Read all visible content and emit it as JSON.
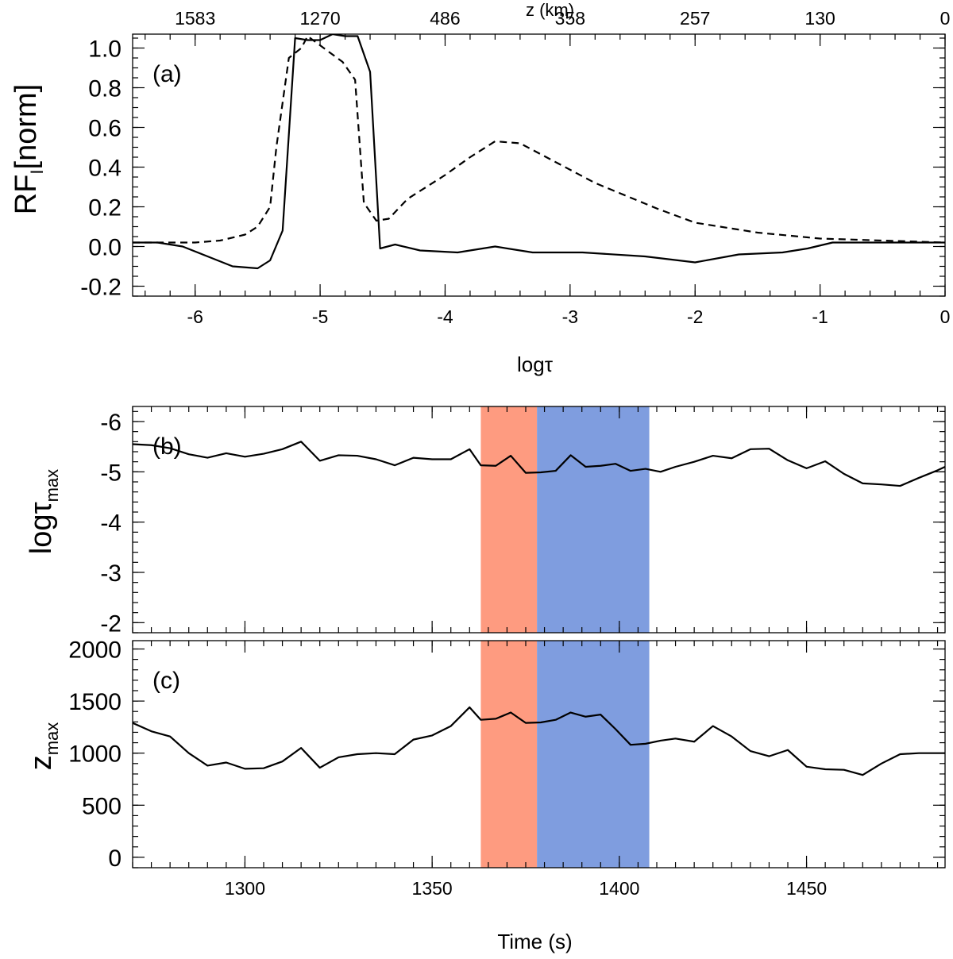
{
  "chart_data": [
    {
      "id": "a",
      "type": "line",
      "panel_label": "(a)",
      "xlabel": "logτ",
      "ylabel": "RF_I[norm]",
      "ylabel_main": "RF",
      "ylabel_sub": "I",
      "ylabel_rest": "[norm]",
      "top_axis_label": "z (km)",
      "xlim": [
        -6.5,
        0
      ],
      "ylim": [
        -0.25,
        1.07
      ],
      "x_ticks": [
        -6,
        -5,
        -4,
        -3,
        -2,
        -1,
        0
      ],
      "x_tick_labels": [
        "-6",
        "-5",
        "-4",
        "-3",
        "-2",
        "-1",
        "0"
      ],
      "y_ticks": [
        -0.2,
        0.0,
        0.2,
        0.4,
        0.6,
        0.8,
        1.0
      ],
      "y_tick_labels": [
        "-0.2",
        "0.0",
        "0.2",
        "0.4",
        "0.6",
        "0.8",
        "1.0"
      ],
      "top_ticks": [
        -6,
        -5,
        -4,
        -3,
        -2,
        -1,
        0
      ],
      "top_tick_labels": [
        "1583",
        "1270",
        "486",
        "358",
        "257",
        "130",
        "0"
      ],
      "series": [
        {
          "name": "solid",
          "style": "solid",
          "x": [
            -6.5,
            -6.3,
            -6.1,
            -5.9,
            -5.7,
            -5.5,
            -5.4,
            -5.3,
            -5.2,
            -5.1,
            -5.0,
            -4.9,
            -4.8,
            -4.7,
            -4.6,
            -4.52,
            -4.4,
            -4.2,
            -3.9,
            -3.6,
            -3.3,
            -2.9,
            -2.4,
            -2.0,
            -1.65,
            -1.3,
            -1.1,
            -0.9,
            -0.5,
            0.0
          ],
          "y": [
            0.02,
            0.02,
            0.0,
            -0.05,
            -0.1,
            -0.11,
            -0.07,
            0.08,
            1.05,
            1.04,
            1.04,
            1.07,
            1.06,
            1.06,
            0.88,
            -0.01,
            0.01,
            -0.02,
            -0.03,
            0.0,
            -0.03,
            -0.03,
            -0.05,
            -0.08,
            -0.04,
            -0.03,
            -0.01,
            0.02,
            0.02,
            0.02
          ]
        },
        {
          "name": "dashed",
          "style": "dashed",
          "x": [
            -6.5,
            -6.2,
            -6.0,
            -5.8,
            -5.6,
            -5.5,
            -5.4,
            -5.35,
            -5.25,
            -5.15,
            -5.1,
            -4.95,
            -4.82,
            -4.72,
            -4.65,
            -4.55,
            -4.45,
            -4.3,
            -4.0,
            -3.8,
            -3.6,
            -3.4,
            -3.1,
            -2.8,
            -2.3,
            -2.0,
            -1.5,
            -1.0,
            -0.5,
            0.0
          ],
          "y": [
            0.02,
            0.02,
            0.02,
            0.03,
            0.06,
            0.1,
            0.2,
            0.5,
            0.95,
            1.0,
            1.06,
            0.99,
            0.93,
            0.84,
            0.22,
            0.13,
            0.14,
            0.24,
            0.36,
            0.45,
            0.53,
            0.52,
            0.42,
            0.32,
            0.19,
            0.12,
            0.07,
            0.04,
            0.03,
            0.02
          ]
        }
      ]
    },
    {
      "id": "b",
      "type": "line",
      "panel_label": "(b)",
      "xlabel": "",
      "ylabel": "logτ_max",
      "ylabel_main": "logτ",
      "ylabel_sub": "max",
      "xlim": [
        1270,
        1487
      ],
      "ylim": [
        -6.3,
        -1.8
      ],
      "y_inverted": true,
      "x_ticks": [
        1300,
        1350,
        1400,
        1450
      ],
      "y_ticks": [
        -6,
        -5,
        -4,
        -3,
        -2
      ],
      "y_tick_labels": [
        "-6",
        "-5",
        "-4",
        "-3",
        "-2"
      ],
      "shaded_regions": [
        {
          "from": 1363,
          "to": 1378,
          "color": "#fe9b80"
        },
        {
          "from": 1378,
          "to": 1408,
          "color": "#7f9ddf"
        }
      ],
      "series": [
        {
          "name": "logtau_max",
          "style": "solid",
          "x": [
            1270,
            1275,
            1280,
            1285,
            1290,
            1295,
            1300,
            1305,
            1310,
            1315,
            1320,
            1325,
            1330,
            1335,
            1340,
            1345,
            1350,
            1355,
            1360,
            1363,
            1367,
            1371,
            1375,
            1379,
            1383,
            1387,
            1391,
            1395,
            1399,
            1403,
            1407,
            1411,
            1415,
            1420,
            1425,
            1430,
            1435,
            1440,
            1445,
            1450,
            1455,
            1460,
            1465,
            1470,
            1475,
            1480,
            1485,
            1487
          ],
          "y": [
            -5.55,
            -5.53,
            -5.47,
            -5.35,
            -5.28,
            -5.37,
            -5.3,
            -5.36,
            -5.45,
            -5.6,
            -5.22,
            -5.33,
            -5.32,
            -5.25,
            -5.13,
            -5.28,
            -5.25,
            -5.25,
            -5.45,
            -5.13,
            -5.12,
            -5.32,
            -4.98,
            -4.99,
            -5.02,
            -5.33,
            -5.1,
            -5.12,
            -5.16,
            -5.02,
            -5.06,
            -5.0,
            -5.1,
            -5.2,
            -5.32,
            -5.27,
            -5.45,
            -5.46,
            -5.23,
            -5.07,
            -5.21,
            -4.96,
            -4.77,
            -4.75,
            -4.72,
            -4.88,
            -5.03,
            -5.1
          ]
        }
      ]
    },
    {
      "id": "c",
      "type": "line",
      "panel_label": "(c)",
      "xlabel": "Time (s)",
      "ylabel": "z_max",
      "ylabel_main": "z",
      "ylabel_sub": "max",
      "xlim": [
        1270,
        1487
      ],
      "ylim": [
        -100,
        2080
      ],
      "x_ticks": [
        1300,
        1350,
        1400,
        1450
      ],
      "x_tick_labels": [
        "1300",
        "1350",
        "1400",
        "1450"
      ],
      "y_ticks": [
        0,
        500,
        1000,
        1500,
        2000
      ],
      "y_tick_labels": [
        "0",
        "500",
        "1000",
        "1500",
        "2000"
      ],
      "shaded_regions": [
        {
          "from": 1363,
          "to": 1378,
          "color": "#fe9b80"
        },
        {
          "from": 1378,
          "to": 1408,
          "color": "#7f9ddf"
        }
      ],
      "series": [
        {
          "name": "z_max",
          "style": "solid",
          "x": [
            1270,
            1275,
            1280,
            1285,
            1290,
            1295,
            1300,
            1305,
            1310,
            1315,
            1320,
            1325,
            1330,
            1335,
            1340,
            1345,
            1350,
            1355,
            1360,
            1363,
            1367,
            1371,
            1375,
            1379,
            1383,
            1387,
            1391,
            1395,
            1399,
            1403,
            1407,
            1411,
            1415,
            1420,
            1425,
            1430,
            1435,
            1440,
            1445,
            1450,
            1455,
            1460,
            1465,
            1470,
            1475,
            1480,
            1485,
            1487
          ],
          "y": [
            1290,
            1210,
            1160,
            1000,
            880,
            910,
            850,
            855,
            920,
            1050,
            860,
            960,
            990,
            1000,
            990,
            1130,
            1170,
            1260,
            1440,
            1320,
            1330,
            1390,
            1290,
            1295,
            1320,
            1390,
            1350,
            1370,
            1230,
            1080,
            1090,
            1120,
            1140,
            1110,
            1260,
            1160,
            1020,
            970,
            1030,
            870,
            845,
            840,
            790,
            900,
            990,
            1000,
            1000,
            1000
          ]
        }
      ]
    }
  ]
}
